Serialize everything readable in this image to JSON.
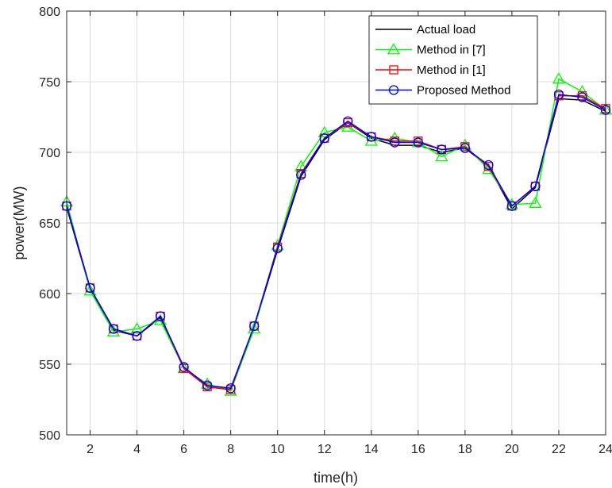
{
  "chart_data": {
    "type": "line",
    "title": "",
    "xlabel": "time(h)",
    "ylabel": "power(MW)",
    "xlim": [
      1,
      24
    ],
    "ylim": [
      500,
      800
    ],
    "xticks": [
      2,
      4,
      6,
      8,
      10,
      12,
      14,
      16,
      18,
      20,
      22,
      24
    ],
    "yticks": [
      500,
      550,
      600,
      650,
      700,
      750,
      800
    ],
    "grid": true,
    "legend_position": "top-right",
    "x": [
      1,
      2,
      3,
      4,
      5,
      6,
      7,
      8,
      9,
      10,
      11,
      12,
      13,
      14,
      15,
      16,
      17,
      18,
      19,
      20,
      21,
      22,
      23,
      24
    ],
    "series": [
      {
        "name": "Actual load",
        "color": "#000000",
        "marker": "none",
        "values": [
          661,
          603,
          574,
          570,
          583,
          547,
          534,
          532,
          576,
          631,
          683,
          709,
          721,
          710,
          705,
          705,
          700,
          703,
          690,
          660,
          675,
          738,
          737,
          729
        ]
      },
      {
        "name": "Method in [7]",
        "color": "#00ff00",
        "marker": "triangle",
        "values": [
          665,
          602,
          573,
          575,
          581,
          547,
          536,
          531,
          575,
          634,
          690,
          714,
          718,
          708,
          710,
          707,
          697,
          705,
          688,
          663,
          664,
          752,
          743,
          730
        ]
      },
      {
        "name": "Method in [1]",
        "color": "#ff0000",
        "marker": "square",
        "values": [
          662,
          604,
          575,
          570,
          584,
          547,
          534,
          532,
          577,
          633,
          685,
          710,
          721,
          711,
          708,
          708,
          702,
          704,
          690,
          662,
          676,
          740,
          740,
          731
        ]
      },
      {
        "name": "Proposed Method",
        "color": "#0000ff",
        "marker": "circle",
        "values": [
          662,
          604,
          575,
          570,
          584,
          548,
          535,
          533,
          577,
          632,
          684,
          710,
          722,
          711,
          707,
          707,
          702,
          703,
          691,
          662,
          676,
          741,
          739,
          730
        ]
      }
    ]
  }
}
